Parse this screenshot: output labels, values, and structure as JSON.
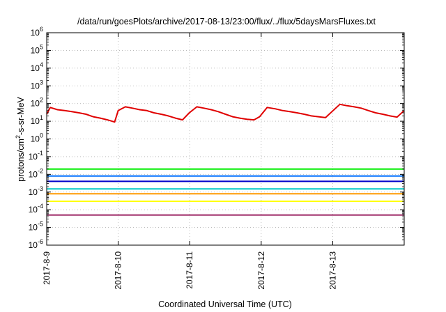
{
  "chart_data": {
    "type": "line",
    "title": "/data/run/goesPlots/archive/2017-08-13/23:00/flux/../flux/5daysMarsFluxes.txt",
    "xlabel": "Coordinated Universal Time (UTC)",
    "ylabel": {
      "prefix": "protons/cm",
      "sup": "2",
      "suffix": "-s-sr-MeV"
    },
    "x_range": [
      "2017-08-09",
      "2017-08-14"
    ],
    "y_scale": "log",
    "ylim": [
      1e-06,
      1000000.0
    ],
    "grid": true,
    "y_ticks": [
      {
        "base": "10",
        "exp": "-6"
      },
      {
        "base": "10",
        "exp": "-5"
      },
      {
        "base": "10",
        "exp": "-4"
      },
      {
        "base": "10",
        "exp": "-3"
      },
      {
        "base": "10",
        "exp": "-2"
      },
      {
        "base": "10",
        "exp": "-1"
      },
      {
        "base": "10",
        "exp": "0"
      },
      {
        "base": "10",
        "exp": "1"
      },
      {
        "base": "10",
        "exp": "2"
      },
      {
        "base": "10",
        "exp": "3"
      },
      {
        "base": "10",
        "exp": "4"
      },
      {
        "base": "10",
        "exp": "5"
      },
      {
        "base": "10",
        "exp": "6"
      }
    ],
    "x_ticks": [
      "2017-8-9",
      "2017-8-10",
      "2017-8-11",
      "2017-8-12",
      "2017-8-13"
    ],
    "series": [
      {
        "color": "#e00000",
        "x": [
          "2017-08-09 00:00",
          "2017-08-09 01:12",
          "2017-08-09 03:36",
          "2017-08-09 06:00",
          "2017-08-09 08:24",
          "2017-08-09 10:48",
          "2017-08-09 13:12",
          "2017-08-09 15:36",
          "2017-08-09 18:00",
          "2017-08-09 20:24",
          "2017-08-09 22:48",
          "2017-08-10 00:00",
          "2017-08-10 02:24",
          "2017-08-10 04:48",
          "2017-08-10 07:12",
          "2017-08-10 09:36",
          "2017-08-10 12:00",
          "2017-08-10 14:24",
          "2017-08-10 16:48",
          "2017-08-10 19:12",
          "2017-08-10 21:36",
          "2017-08-10 23:52",
          "2017-08-11 02:24",
          "2017-08-11 04:48",
          "2017-08-11 07:12",
          "2017-08-11 09:36",
          "2017-08-11 12:00",
          "2017-08-11 14:24",
          "2017-08-11 16:48",
          "2017-08-11 19:12",
          "2017-08-11 21:36",
          "2017-08-11 23:28",
          "2017-08-12 02:00",
          "2017-08-12 04:48",
          "2017-08-12 07:12",
          "2017-08-12 09:36",
          "2017-08-12 12:00",
          "2017-08-12 14:24",
          "2017-08-12 16:48",
          "2017-08-12 19:12",
          "2017-08-12 21:36",
          "2017-08-12 23:45",
          "2017-08-13 02:24",
          "2017-08-13 04:48",
          "2017-08-13 07:12",
          "2017-08-13 09:36",
          "2017-08-13 12:00",
          "2017-08-13 14:24",
          "2017-08-13 16:48",
          "2017-08-13 19:12",
          "2017-08-13 21:36",
          "2017-08-13 23:59"
        ],
        "y": [
          25,
          60,
          45,
          40,
          35,
          30,
          25,
          18,
          15,
          12,
          9,
          40,
          65,
          55,
          45,
          40,
          30,
          25,
          20,
          15,
          12,
          30,
          65,
          55,
          45,
          35,
          25,
          18,
          15,
          13,
          12,
          18,
          60,
          50,
          40,
          35,
          30,
          25,
          20,
          18,
          16,
          35,
          90,
          75,
          65,
          55,
          40,
          30,
          25,
          20,
          17,
          40
        ]
      },
      {
        "color": "#00ee00",
        "x": [
          "2017-08-09 00:00",
          "2017-08-14 00:00"
        ],
        "y": [
          0.02,
          0.02
        ]
      },
      {
        "color": "#0070ff",
        "x": [
          "2017-08-09 00:00",
          "2017-08-14 00:00"
        ],
        "y": [
          0.008,
          0.008
        ]
      },
      {
        "color": "#0000cc",
        "x": [
          "2017-08-09 00:00",
          "2017-08-14 00:00"
        ],
        "y": [
          0.004,
          0.004
        ]
      },
      {
        "color": "#00c8c8",
        "x": [
          "2017-08-09 00:00",
          "2017-08-14 00:00"
        ],
        "y": [
          0.0015,
          0.0015
        ]
      },
      {
        "color": "#ff9900",
        "x": [
          "2017-08-09 00:00",
          "2017-08-14 00:00"
        ],
        "y": [
          0.0008,
          0.0008
        ]
      },
      {
        "color": "#ffff00",
        "x": [
          "2017-08-09 00:00",
          "2017-08-14 00:00"
        ],
        "y": [
          0.0003,
          0.0003
        ]
      },
      {
        "color": "#a0306c",
        "x": [
          "2017-08-09 00:00",
          "2017-08-14 00:00"
        ],
        "y": [
          5e-05,
          5e-05
        ]
      }
    ]
  }
}
